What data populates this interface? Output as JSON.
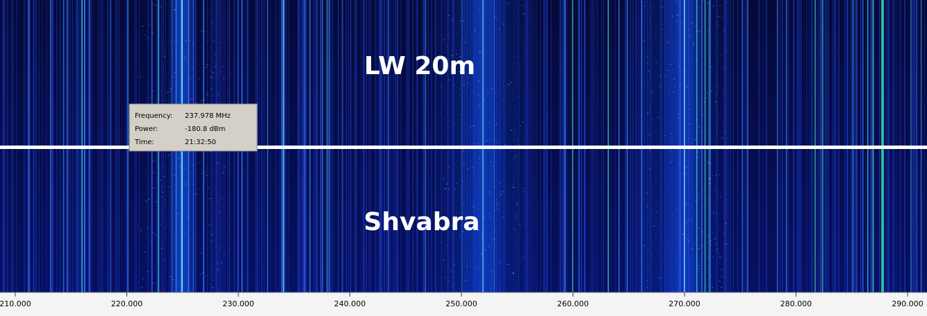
{
  "waterfalls": [
    {
      "label": "LW 20m"
    },
    {
      "label": "Shvabra"
    }
  ],
  "tooltip": {
    "rows": [
      {
        "name": "Frequency:",
        "value": "237.978 MHz"
      },
      {
        "name": "Power:",
        "value": "-180.8 dBm"
      },
      {
        "name": "Time:",
        "value": "21:32:50"
      }
    ]
  },
  "axis": {
    "xlim": [
      208.63,
      291.74
    ],
    "ticks": [
      {
        "value": 210,
        "label": "210.000"
      },
      {
        "value": 220,
        "label": "220.000"
      },
      {
        "value": 230,
        "label": "230.000"
      },
      {
        "value": 240,
        "label": "240.000"
      },
      {
        "value": 250,
        "label": "250.000"
      },
      {
        "value": 260,
        "label": "260.000"
      },
      {
        "value": 270,
        "label": "270.000"
      },
      {
        "value": 280,
        "label": "280.000"
      },
      {
        "value": 290,
        "label": "290.000"
      }
    ]
  }
}
